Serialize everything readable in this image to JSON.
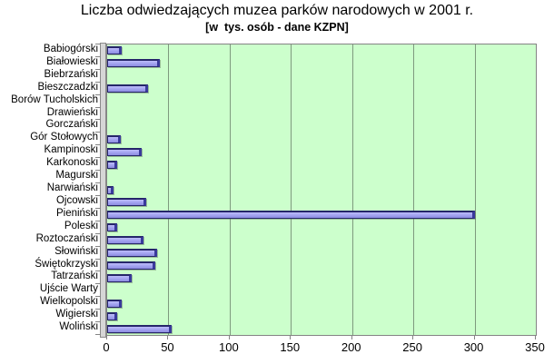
{
  "chart_data": {
    "type": "bar",
    "orientation": "horizontal",
    "title": "Liczba odwiedzających muzea parków narodowych w 2001 r.",
    "subtitle": "[w  tys. osób - dane KZPN]",
    "categories": [
      "Babiogórski",
      "Białowieski",
      "Biebrzański",
      "Bieszczadzki",
      "Borów Tucholskich",
      "Drawieński",
      "Gorczański",
      "Gór Stołowych",
      "Kampinoski",
      "Karkonoski",
      "Magurski",
      "Narwiański",
      "Ojcowski",
      "Pieniński",
      "Poleski",
      "Roztoczański",
      "Słowiński",
      "Świętokrzyski",
      "Tatrzański",
      "Ujście Warty",
      "Wielkopolski",
      "Wigierski",
      "Woliński"
    ],
    "values": [
      12,
      43,
      0,
      33,
      0,
      0,
      0,
      11,
      28,
      8,
      0,
      5,
      32,
      300,
      8,
      30,
      41,
      39,
      20,
      0,
      12,
      8,
      53
    ],
    "xlabel": "",
    "ylabel": "",
    "xlim": [
      0,
      350
    ],
    "x_ticks": [
      0,
      50,
      100,
      150,
      200,
      250,
      300,
      350
    ],
    "grid": "vertical-major",
    "legend": "none",
    "colors": {
      "background": "#ffffff",
      "plot_bg": "#ccffcc",
      "bar_fill": "#a6a6f2",
      "bar_fill_dark": "#8d8de0",
      "bar_edge": "#26266a",
      "gridline": "#7e9a7e",
      "axis": "#848484",
      "wall": "#d6d6d6",
      "text": "#000000"
    }
  }
}
